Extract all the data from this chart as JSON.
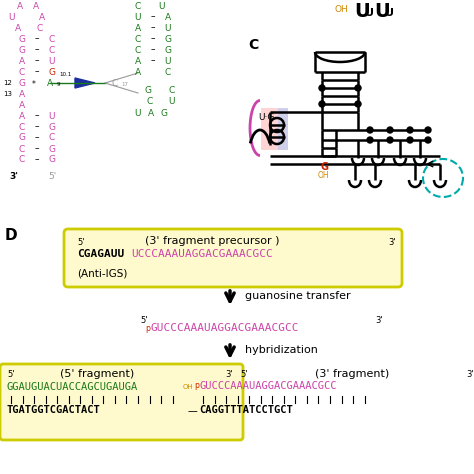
{
  "colors": {
    "pink": "#CC44AA",
    "dark_green": "#1A7A1A",
    "red": "#CC2200",
    "orange": "#CC8800",
    "black": "#000000",
    "gray": "#999999",
    "teal": "#00AAAA",
    "blue_arrow": "#1A2E9E",
    "blue_highlight": "#9999DD",
    "pink_highlight": "#FFAAAA",
    "box_fill": "#FFFACD",
    "box_edge": "#CCCC00"
  },
  "panelD": {
    "box1_label": "(3' fragment precursor )",
    "box1_black": "CGAGAUU",
    "box1_pink": "UCCCAAAUAGGACGAAACGCC",
    "anti_igs": "(Anti-IGS)",
    "arrow1_label": "guanosine transfer",
    "mid_pink": "GUCCCAAAUAGGACGAAACGCC",
    "arrow2_label": "hybridization",
    "left_label": "(5' fragment)",
    "left_green": "GGAUGUACUACCAGCUGAUGA",
    "right_label": "(3' fragment)",
    "right_pink": "GUCCCAAAUAGGACGAAACGCC",
    "dna_left": "TGATGGTCGACTACT",
    "dna_right": "CAGGTTTATCCTGCT"
  }
}
